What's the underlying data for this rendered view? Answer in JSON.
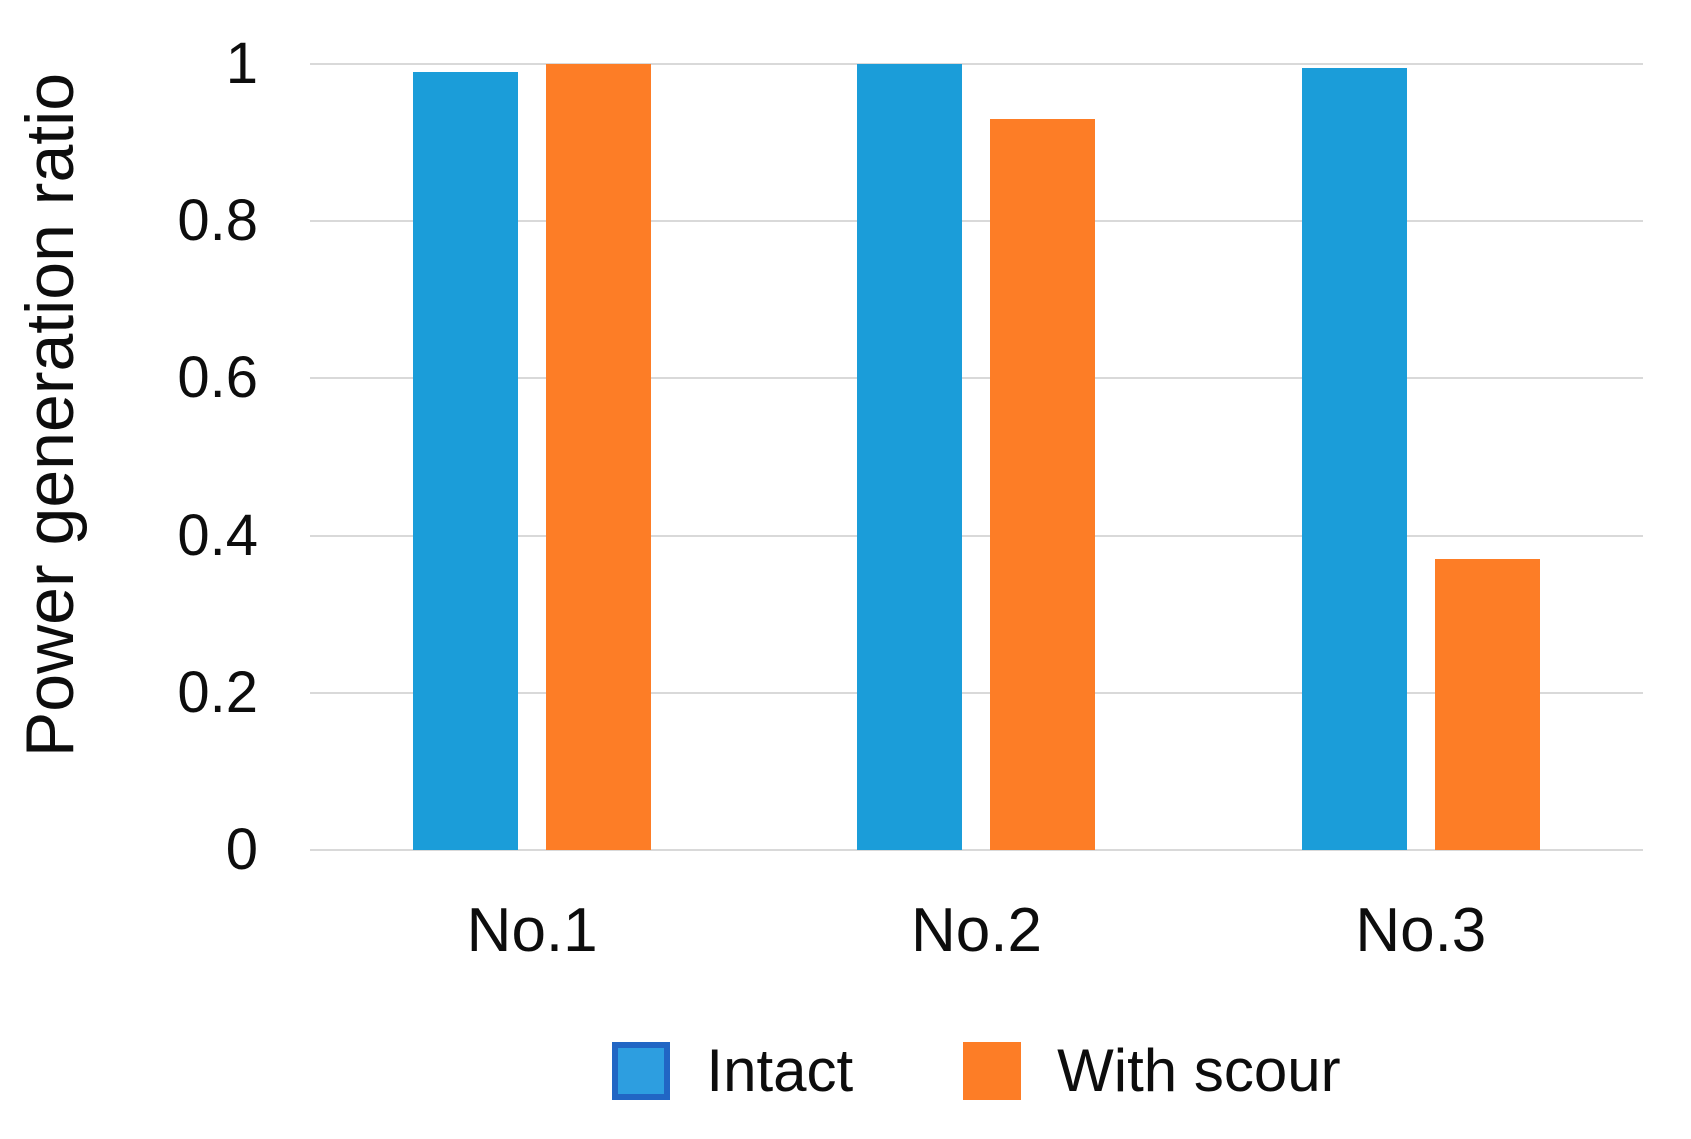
{
  "chart_data": {
    "type": "bar",
    "title": "",
    "xlabel": "",
    "ylabel": "Power generation ratio",
    "categories": [
      "No.1",
      "No.2",
      "No.3"
    ],
    "series": [
      {
        "name": "Intact",
        "color": "#1b9dd9",
        "values": [
          0.99,
          1.0,
          0.995
        ]
      },
      {
        "name": "With scour",
        "color": "#fd7d26",
        "values": [
          1.0,
          0.93,
          0.37
        ]
      }
    ],
    "ylim": [
      0,
      1
    ],
    "yticks": [
      0,
      0.2,
      0.4,
      0.6,
      0.8,
      1
    ],
    "ytick_labels": [
      "0",
      "0.2",
      "0.4",
      "0.6",
      "0.8",
      "1"
    ],
    "grid": true,
    "gridline_color": "#d9d9d9",
    "background_color": "#ffffff",
    "text_color": "#0d0d0d",
    "legend_position": "bottom",
    "legend": {
      "items": [
        {
          "label": "Intact",
          "swatch_fill": "#2d9ee0",
          "swatch_border": "#2166c4"
        },
        {
          "label": "With scour",
          "swatch_fill": "#fd7d26",
          "swatch_border": "#fd7d26"
        }
      ]
    }
  }
}
